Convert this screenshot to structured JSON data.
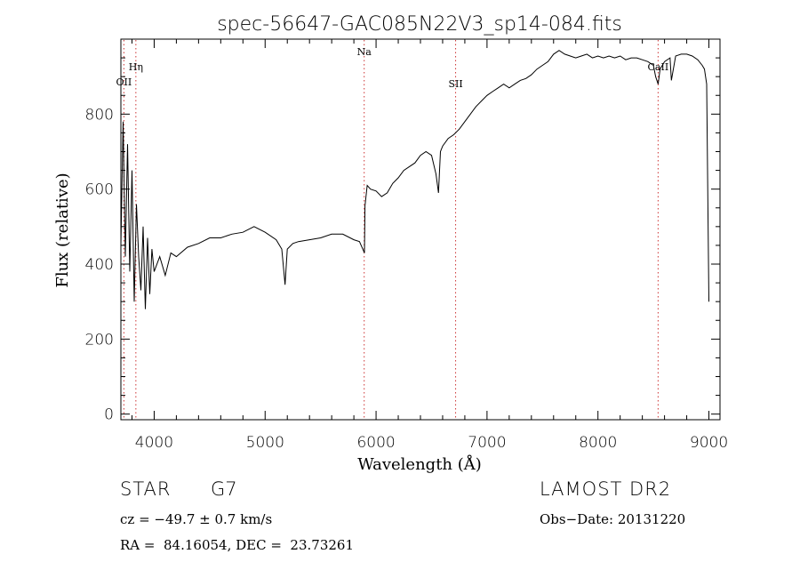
{
  "chart_data": {
    "type": "line",
    "title": "spec-56647-GAC085N22V3_sp14-084.fits",
    "xlabel": "Wavelength (Å)",
    "ylabel": "Flux (relative)",
    "xlim": [
      3700,
      9100
    ],
    "ylim": [
      -15,
      1000
    ],
    "x_ticks": [
      4000,
      5000,
      6000,
      7000,
      8000,
      9000
    ],
    "y_ticks": [
      0,
      200,
      400,
      600,
      800
    ],
    "grid": false,
    "line_color": "#000000",
    "marker_color": "#cc3333",
    "spectral_lines": [
      {
        "label": "OII",
        "wavelength": 3727
      },
      {
        "label": "Hη",
        "wavelength": 3835
      },
      {
        "label": "Na",
        "wavelength": 5893
      },
      {
        "label": "SII",
        "wavelength": 6717
      },
      {
        "label": "CaII",
        "wavelength": 8542
      }
    ],
    "series": [
      {
        "x": [
          3700,
          3720,
          3740,
          3760,
          3780,
          3800,
          3820,
          3840,
          3860,
          3880,
          3900,
          3920,
          3940,
          3960,
          3980,
          4000,
          4050,
          4100,
          4150,
          4200,
          4300,
          4400,
          4500,
          4600,
          4700,
          4800,
          4900,
          5000,
          5100,
          5150,
          5180,
          5200,
          5250,
          5300,
          5400,
          5500,
          5600,
          5700,
          5800,
          5850,
          5880,
          5895,
          5900,
          5920,
          5950,
          6000,
          6050,
          6100,
          6150,
          6200,
          6250,
          6300,
          6350,
          6400,
          6450,
          6500,
          6540,
          6563,
          6580,
          6600,
          6650,
          6700,
          6750,
          6800,
          6850,
          6900,
          6950,
          7000,
          7050,
          7100,
          7150,
          7200,
          7250,
          7300,
          7350,
          7400,
          7450,
          7500,
          7550,
          7600,
          7650,
          7700,
          7750,
          7800,
          7850,
          7900,
          7950,
          8000,
          8050,
          8100,
          8150,
          8200,
          8250,
          8300,
          8350,
          8400,
          8450,
          8500,
          8520,
          8542,
          8560,
          8600,
          8650,
          8662,
          8700,
          8750,
          8800,
          8850,
          8900,
          8940,
          8960,
          8980,
          9000
        ],
        "y": [
          450,
          780,
          420,
          720,
          380,
          650,
          300,
          560,
          420,
          330,
          500,
          280,
          470,
          320,
          440,
          380,
          420,
          370,
          430,
          420,
          445,
          455,
          470,
          470,
          480,
          485,
          500,
          485,
          465,
          440,
          345,
          440,
          455,
          460,
          465,
          470,
          480,
          480,
          465,
          460,
          440,
          430,
          555,
          610,
          600,
          595,
          580,
          590,
          615,
          630,
          650,
          660,
          670,
          690,
          700,
          690,
          640,
          590,
          700,
          715,
          735,
          745,
          760,
          780,
          800,
          820,
          835,
          850,
          860,
          870,
          880,
          870,
          880,
          890,
          895,
          905,
          920,
          930,
          940,
          960,
          970,
          960,
          955,
          950,
          955,
          960,
          950,
          955,
          950,
          955,
          950,
          955,
          945,
          950,
          950,
          945,
          940,
          930,
          900,
          880,
          920,
          940,
          950,
          890,
          955,
          960,
          960,
          955,
          945,
          930,
          920,
          880,
          300
        ]
      }
    ]
  },
  "info": {
    "object_type": "STAR",
    "object_class": "G7",
    "survey": "LAMOST DR2",
    "cz": "cz = −49.7 ± 0.7 km/s",
    "obs_date": "Obs−Date: 20131220",
    "radec": "RA =  84.16054, DEC =  23.73261"
  }
}
